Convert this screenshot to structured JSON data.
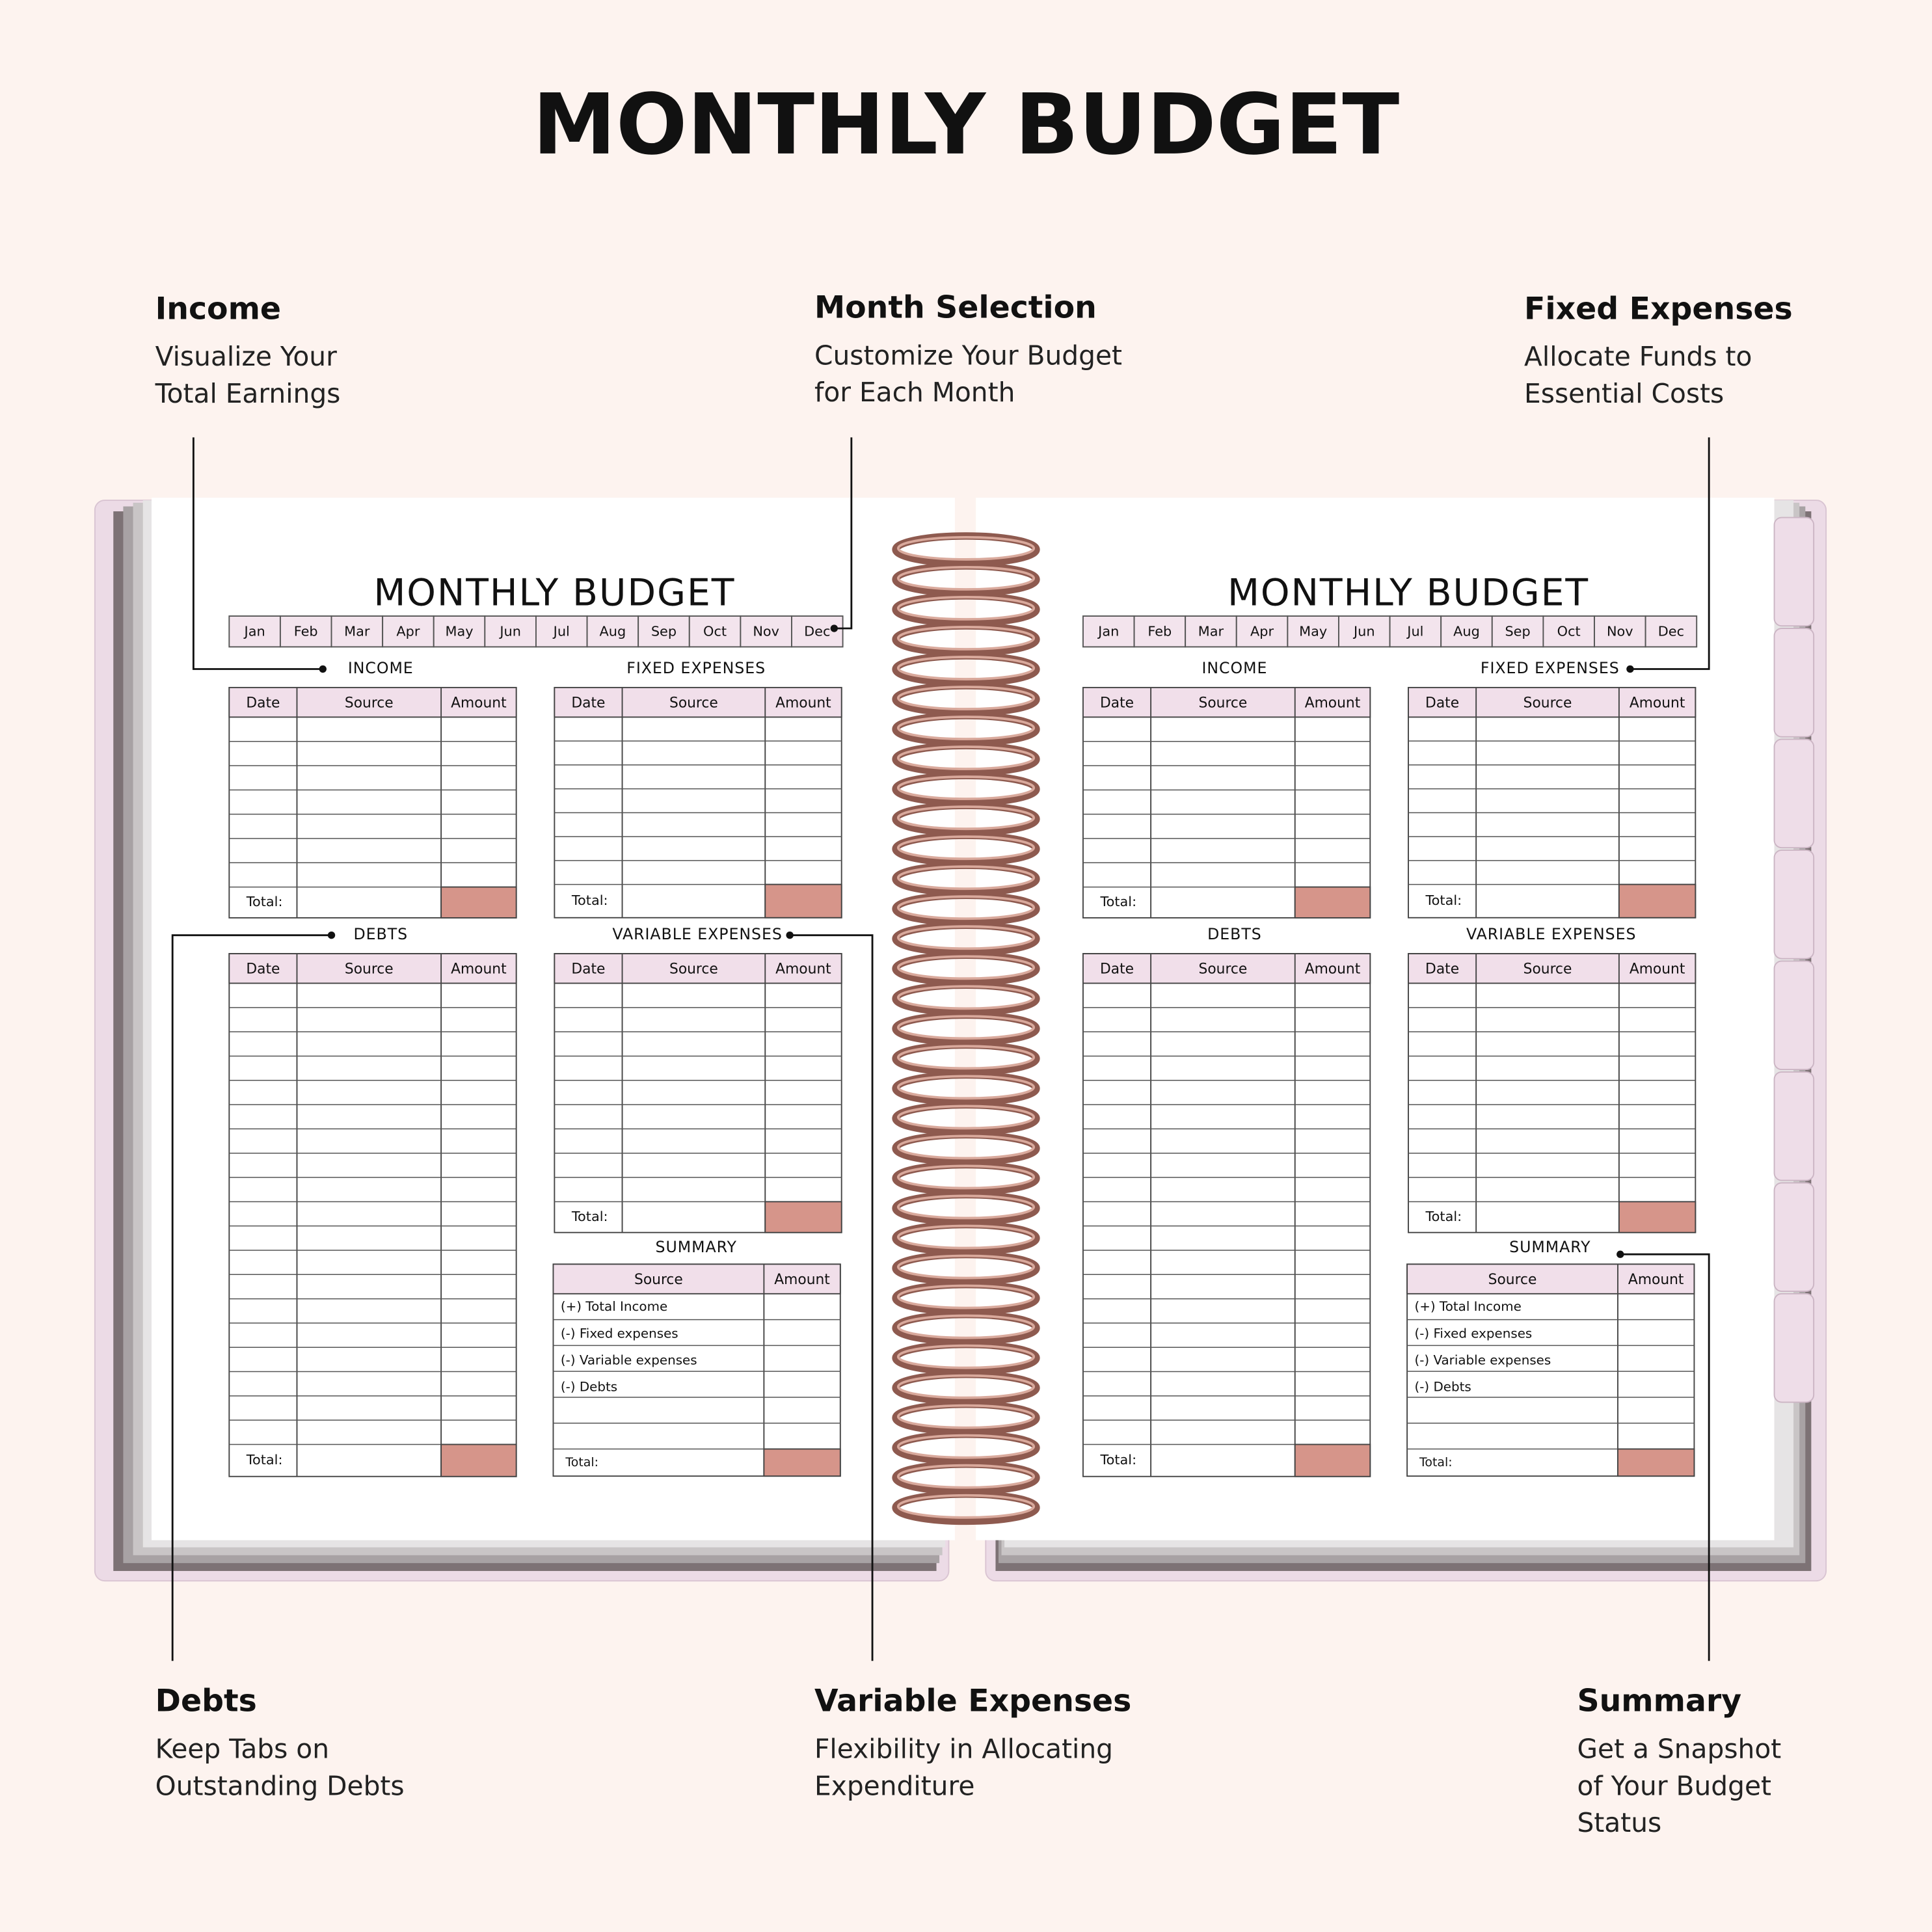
{
  "title": "MONTHLY BUDGET",
  "callouts": [
    {
      "heading": "Income",
      "lines": [
        "Visualize Your",
        "Total Earnings"
      ]
    },
    {
      "heading": "Month Selection",
      "lines": [
        "Customize Your Budget",
        "for Each Month"
      ]
    },
    {
      "heading": "Fixed Expenses",
      "lines": [
        "Allocate Funds to",
        "Essential Costs"
      ]
    },
    {
      "heading": "Debts",
      "lines": [
        "Keep Tabs on",
        "Outstanding Debts"
      ]
    },
    {
      "heading": "Variable Expenses",
      "lines": [
        "Flexibility in Allocating",
        "Expenditure"
      ]
    },
    {
      "heading": "Summary",
      "lines": [
        "Get a Snapshot",
        "of Your Budget",
        "Status"
      ]
    }
  ],
  "pages": [
    {
      "title": "MONTHLY BUDGET",
      "months": [
        "Jan",
        "Feb",
        "Mar",
        "Apr",
        "May",
        "Jun",
        "Jul",
        "Aug",
        "Sep",
        "Oct",
        "Nov",
        "Dec"
      ],
      "income": {
        "heading": "INCOME",
        "columns": [
          "Date",
          "Source",
          "Amount"
        ],
        "total_label": "Total:"
      },
      "fixed_expenses": {
        "heading": "FIXED EXPENSES",
        "columns": [
          "Date",
          "Source",
          "Amount"
        ],
        "total_label": "Total:"
      },
      "debts": {
        "heading": "DEBTS",
        "columns": [
          "Date",
          "Source",
          "Amount"
        ],
        "total_label": "Total:"
      },
      "variable_expenses": {
        "heading": "VARIABLE EXPENSES",
        "columns": [
          "Date",
          "Source",
          "Amount"
        ],
        "total_label": "Total:"
      },
      "summary": {
        "heading": "SUMMARY",
        "columns": [
          "Source",
          "Amount"
        ],
        "rows": [
          "(+) Total Income",
          "(-) Fixed expenses",
          "(-) Variable expenses",
          "(-) Debts"
        ],
        "total_label": "Total:"
      }
    },
    {
      "title": "MONTHLY BUDGET",
      "months": [
        "Jan",
        "Feb",
        "Mar",
        "Apr",
        "May",
        "Jun",
        "Jul",
        "Aug",
        "Sep",
        "Oct",
        "Nov",
        "Dec"
      ],
      "income": {
        "heading": "INCOME",
        "columns": [
          "Date",
          "Source",
          "Amount"
        ],
        "total_label": "Total:"
      },
      "fixed_expenses": {
        "heading": "FIXED EXPENSES",
        "columns": [
          "Date",
          "Source",
          "Amount"
        ],
        "total_label": "Total:"
      },
      "debts": {
        "heading": "DEBTS",
        "columns": [
          "Date",
          "Source",
          "Amount"
        ],
        "total_label": "Total:"
      },
      "variable_expenses": {
        "heading": "VARIABLE EXPENSES",
        "columns": [
          "Date",
          "Source",
          "Amount"
        ],
        "total_label": "Total:"
      },
      "summary": {
        "heading": "SUMMARY",
        "columns": [
          "Source",
          "Amount"
        ],
        "rows": [
          "(+) Total Income",
          "(-) Fixed expenses",
          "(-) Variable expenses",
          "(-) Debts"
        ],
        "total_label": "Total:"
      }
    }
  ]
}
